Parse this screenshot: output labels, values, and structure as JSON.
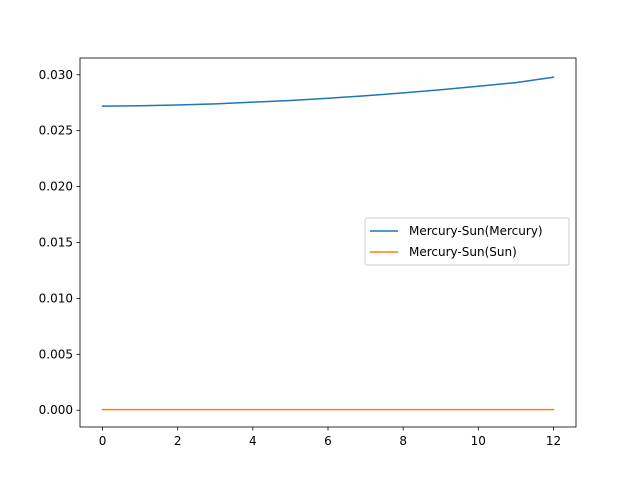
{
  "chart_data": {
    "type": "line",
    "xlim": [
      -0.6,
      12.6
    ],
    "ylim": [
      -0.0015,
      0.0315
    ],
    "x_ticks": [
      0,
      2,
      4,
      6,
      8,
      10,
      12
    ],
    "x_tick_labels": [
      "0",
      "2",
      "4",
      "6",
      "8",
      "10",
      "12"
    ],
    "y_ticks": [
      0.0,
      0.005,
      0.01,
      0.015,
      0.02,
      0.025,
      0.03
    ],
    "y_tick_labels": [
      "0.000",
      "0.005",
      "0.010",
      "0.015",
      "0.020",
      "0.025",
      "0.030"
    ],
    "grid": false,
    "legend_position": "center-right",
    "x": [
      0,
      1,
      2,
      3,
      4,
      5,
      6,
      7,
      8,
      9,
      10,
      11,
      12
    ],
    "series": [
      {
        "name": "Mercury-Sun(Mercury)",
        "color": "#1f77b4",
        "values": [
          0.0272,
          0.02723,
          0.0273,
          0.0274,
          0.02755,
          0.0277,
          0.0279,
          0.02812,
          0.02838,
          0.02866,
          0.02897,
          0.0293,
          0.02978
        ]
      },
      {
        "name": "Mercury-Sun(Sun)",
        "color": "#ff7f0e",
        "values": [
          5e-05,
          5e-05,
          5e-05,
          5e-05,
          5e-05,
          5e-05,
          5e-05,
          5e-05,
          5e-05,
          5e-05,
          5e-05,
          5e-05,
          5e-05
        ]
      }
    ]
  }
}
